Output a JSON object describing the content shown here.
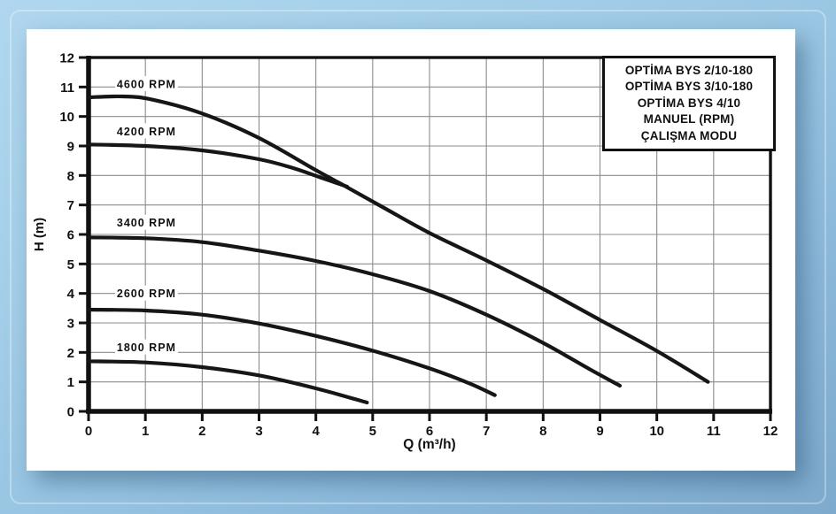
{
  "colors": {
    "background_top": "#b0d7ef",
    "background_bottom": "#7daacd",
    "panel": "#ffffff",
    "curve": "#161616",
    "grid": "#8c8c8c",
    "frame": "#111111",
    "text": "#111111"
  },
  "legend": {
    "lines": [
      "OPTİMA BYS 2/10-180",
      "OPTİMA BYS 3/10-180",
      "OPTİMA BYS 4/10",
      "MANUEL (RPM)",
      "ÇALIŞMA MODU"
    ]
  },
  "chart_data": {
    "type": "line",
    "title": "",
    "xlabel": "Q (m³/h)",
    "ylabel": "H (m)",
    "xlim": [
      0,
      12
    ],
    "ylim": [
      0,
      12
    ],
    "x_ticks": [
      0,
      1,
      2,
      3,
      4,
      5,
      6,
      7,
      8,
      9,
      10,
      11,
      12
    ],
    "y_ticks": [
      0,
      1,
      2,
      3,
      4,
      5,
      6,
      7,
      8,
      9,
      10,
      11,
      12
    ],
    "grid": true,
    "legend_position": "top-right-box",
    "series": [
      {
        "name": "4600 RPM",
        "label_pos": [
          1.02,
          11.1
        ],
        "points": [
          [
            0,
            10.65
          ],
          [
            0.6,
            10.68
          ],
          [
            1.1,
            10.58
          ],
          [
            2,
            10.1
          ],
          [
            3,
            9.27
          ],
          [
            4,
            8.18
          ],
          [
            4.55,
            7.6
          ],
          [
            5.2,
            6.9
          ],
          [
            6,
            6.05
          ],
          [
            7,
            5.12
          ],
          [
            8,
            4.15
          ],
          [
            9,
            3.1
          ],
          [
            10,
            2.05
          ],
          [
            10.9,
            1.0
          ]
        ]
      },
      {
        "name": "4200 RPM",
        "label_pos": [
          1.02,
          9.5
        ],
        "points": [
          [
            0,
            9.05
          ],
          [
            1,
            9.0
          ],
          [
            2,
            8.85
          ],
          [
            3,
            8.55
          ],
          [
            3.6,
            8.25
          ],
          [
            4.1,
            7.92
          ],
          [
            4.55,
            7.62
          ]
        ]
      },
      {
        "name": "3400 RPM",
        "label_pos": [
          1.02,
          6.4
        ],
        "points": [
          [
            0,
            5.9
          ],
          [
            1,
            5.87
          ],
          [
            2,
            5.74
          ],
          [
            3,
            5.45
          ],
          [
            4,
            5.1
          ],
          [
            5,
            4.65
          ],
          [
            6,
            4.08
          ],
          [
            7,
            3.28
          ],
          [
            8,
            2.32
          ],
          [
            8.8,
            1.45
          ],
          [
            9.35,
            0.87
          ]
        ]
      },
      {
        "name": "2600 RPM",
        "label_pos": [
          1.02,
          4.0
        ],
        "points": [
          [
            0,
            3.45
          ],
          [
            1,
            3.42
          ],
          [
            2,
            3.28
          ],
          [
            3,
            2.98
          ],
          [
            4,
            2.56
          ],
          [
            5,
            2.06
          ],
          [
            6,
            1.46
          ],
          [
            6.7,
            0.95
          ],
          [
            7.15,
            0.55
          ]
        ]
      },
      {
        "name": "1800 RPM",
        "label_pos": [
          1.02,
          2.17
        ],
        "points": [
          [
            0,
            1.7
          ],
          [
            1,
            1.66
          ],
          [
            2,
            1.5
          ],
          [
            3,
            1.22
          ],
          [
            4,
            0.78
          ],
          [
            4.9,
            0.3
          ]
        ]
      }
    ]
  }
}
